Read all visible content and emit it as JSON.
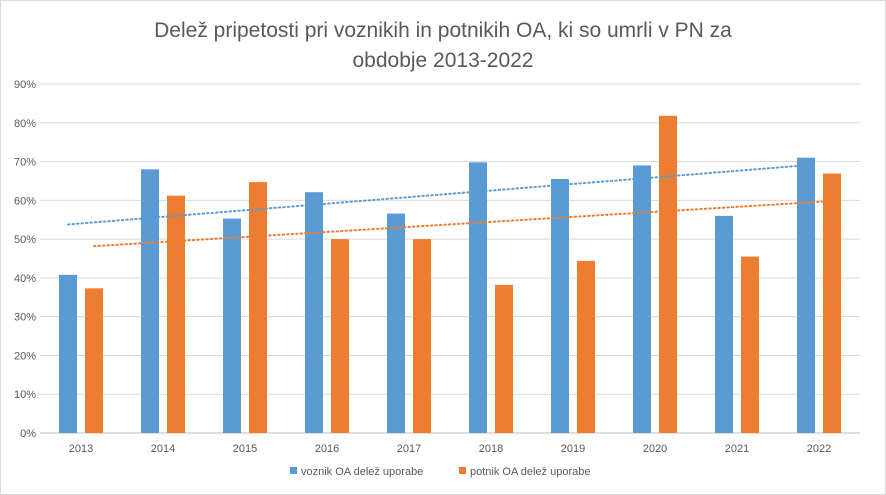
{
  "chart_data": {
    "type": "bar",
    "title": "Delež pripetosti pri voznikih in potnikih OA, ki so umrli v PN za obdobje 2013-2022",
    "title_lines": [
      "Delež pripetosti pri voznikih in potnikih OA, ki so umrli v PN za",
      "obdobje 2013-2022"
    ],
    "categories": [
      "2013",
      "2014",
      "2015",
      "2016",
      "2017",
      "2018",
      "2019",
      "2020",
      "2021",
      "2022"
    ],
    "series": [
      {
        "name": "voznik OA delež uporabe",
        "color": "#5b9bd5",
        "values": [
          40.8,
          68.0,
          55.3,
          62.1,
          56.6,
          69.8,
          65.5,
          69.0,
          56.0,
          71.0
        ]
      },
      {
        "name": "potnik OA delež uporabe",
        "color": "#ed7d31",
        "values": [
          37.3,
          61.2,
          64.7,
          50.0,
          50.0,
          38.2,
          44.4,
          81.8,
          45.5,
          66.9
        ]
      }
    ],
    "trendlines": [
      {
        "series": "voznik OA delež uporabe",
        "type": "linear",
        "color": "#5b9bd5",
        "style": "dotted"
      },
      {
        "series": "potnik OA delež uporabe",
        "type": "linear",
        "color": "#ed7d31",
        "style": "dotted"
      }
    ],
    "yticks": [
      "0%",
      "10%",
      "20%",
      "30%",
      "40%",
      "50%",
      "60%",
      "70%",
      "80%",
      "90%"
    ],
    "ylim": [
      0,
      90
    ],
    "grid": true,
    "legend_position": "bottom"
  }
}
